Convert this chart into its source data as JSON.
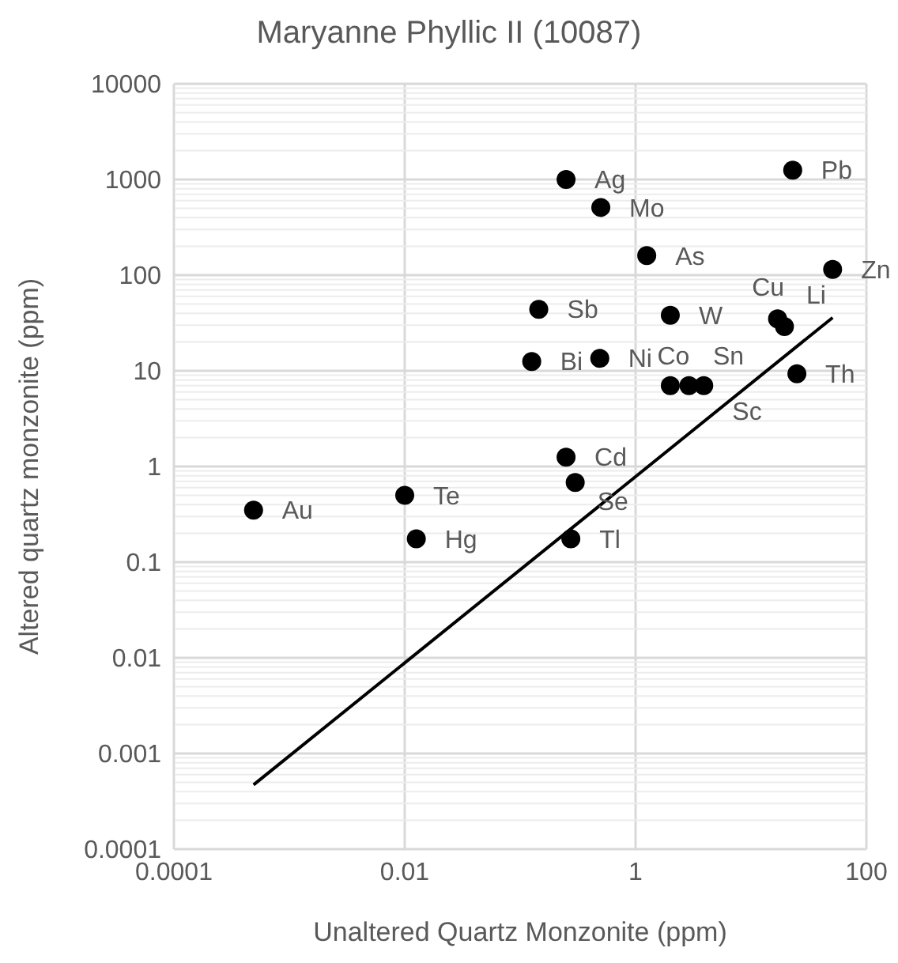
{
  "chart_data": {
    "type": "scatter",
    "title": "Maryanne Phyllic II (10087)",
    "xlabel": "Unaltered Quartz Monzonite (ppm)",
    "ylabel": "Altered quartz monzonite (ppm)",
    "log": "xy",
    "grid": true,
    "marker": "circle",
    "xlim": [
      0.0001,
      100
    ],
    "xticks": [
      0.0001,
      0.01,
      1,
      100
    ],
    "ylim": [
      0.0001,
      10000
    ],
    "yticks": [
      0.0001,
      0.001,
      0.01,
      0.1,
      1,
      10,
      100,
      1000,
      10000
    ],
    "series": [
      {
        "type": "scatter",
        "color": "#000000",
        "x": [
          0.25,
          0.5,
          1.25,
          23,
          51,
          0.145,
          2.0,
          17,
          19.5,
          0.126,
          0.49,
          2.0,
          2.9,
          3.9,
          25,
          0.25,
          0.3,
          0.01,
          0.00049,
          0.0126,
          0.275
        ],
        "values": [
          1000,
          510,
          160,
          1250,
          115,
          44,
          38,
          35,
          29,
          12.5,
          13.5,
          7,
          7,
          7,
          9.3,
          1.25,
          0.68,
          0.5,
          0.35,
          0.175,
          0.175
        ],
        "value_labels": [
          "Ag",
          "Mo",
          "As",
          "Pb",
          "Zn",
          "Sb",
          "W",
          "Cu",
          "Li",
          "Bi",
          "Ni",
          "Co",
          "Sn",
          "Sc",
          "Th",
          "Cd",
          "Se",
          "Te",
          "Au",
          "Hg",
          "Tl"
        ]
      },
      {
        "type": "line",
        "color": "#000000",
        "marker": "none",
        "x": [
          0.00049,
          51
        ],
        "values": [
          0.00047,
          36
        ]
      }
    ]
  }
}
